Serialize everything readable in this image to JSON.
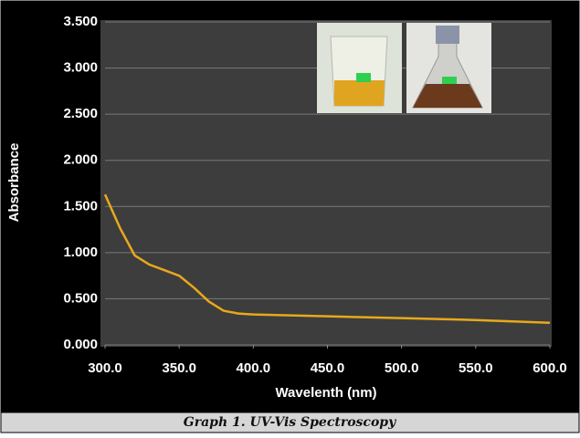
{
  "chart_data": {
    "type": "line",
    "caption": "Graph 1. UV-Vis Spectroscopy",
    "x_label": "Wavelenth (nm)",
    "y_label": "Absorbance",
    "x": [
      300,
      310,
      320,
      330,
      340,
      350,
      360,
      370,
      380,
      390,
      400,
      450,
      500,
      550,
      600
    ],
    "series": [
      {
        "color": "#e8a91a",
        "values": [
          1.63,
          1.27,
          0.97,
          0.87,
          0.81,
          0.75,
          0.62,
          0.47,
          0.37,
          0.34,
          0.33,
          0.31,
          0.29,
          0.27,
          0.24
        ]
      }
    ],
    "xlim": [
      300,
      600
    ],
    "xticks": [
      {
        "value": 300,
        "label": "300.0"
      },
      {
        "value": 350,
        "label": "350.0"
      },
      {
        "value": 400,
        "label": "400.0"
      },
      {
        "value": 450,
        "label": "450.0"
      },
      {
        "value": 500,
        "label": "500.0"
      },
      {
        "value": 550,
        "label": "550.0"
      },
      {
        "value": 600,
        "label": "600.0"
      }
    ],
    "ylim": [
      0,
      3.5
    ],
    "yticks": [
      {
        "value": 0,
        "label": "0.000"
      },
      {
        "value": 0.5,
        "label": "0.500"
      },
      {
        "value": 1,
        "label": "1.000"
      },
      {
        "value": 1.5,
        "label": "1.500"
      },
      {
        "value": 2,
        "label": "2.000"
      },
      {
        "value": 2.5,
        "label": "2.500"
      },
      {
        "value": 3,
        "label": "3.000"
      },
      {
        "value": 3.5,
        "label": "3.500"
      }
    ],
    "grid": true
  }
}
